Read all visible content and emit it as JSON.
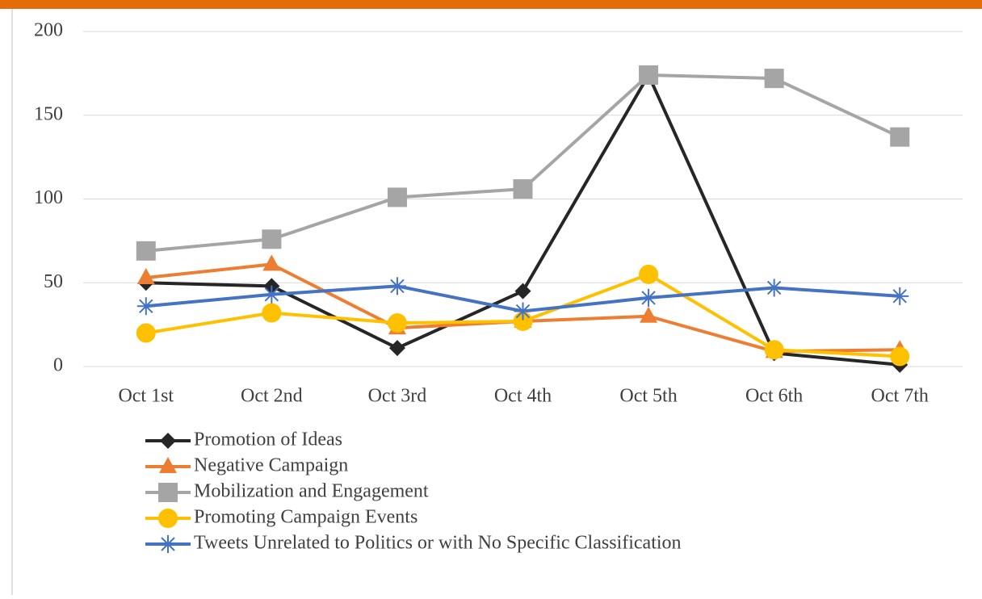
{
  "chart_data": {
    "type": "line",
    "categories": [
      "Oct 1st",
      "Oct 2nd",
      "Oct 3rd",
      "Oct 4th",
      "Oct 5th",
      "Oct 6th",
      "Oct 7th"
    ],
    "series": [
      {
        "name": "Promotion of Ideas",
        "color": "#262626",
        "marker": "diamond",
        "values": [
          50,
          48,
          11,
          45,
          174,
          8,
          1
        ]
      },
      {
        "name": "Negative Campaign",
        "color": "#ed7d31",
        "marker": "triangle",
        "values": [
          53,
          61,
          23,
          27,
          30,
          9,
          10
        ]
      },
      {
        "name": "Mobilization and Engagement",
        "color": "#a5a5a5",
        "marker": "square",
        "values": [
          69,
          76,
          101,
          106,
          174,
          172,
          137
        ]
      },
      {
        "name": "Promoting Campaign Events",
        "color": "#ffc000",
        "marker": "circle",
        "values": [
          20,
          32,
          26,
          27,
          55,
          10,
          6
        ]
      },
      {
        "name": "Tweets Unrelated to Politics or with No Specific Classification",
        "color": "#4472c4",
        "marker": "star",
        "values": [
          36,
          43,
          48,
          33,
          41,
          47,
          42
        ]
      }
    ],
    "ylim": [
      0,
      200
    ],
    "yticks": [
      0,
      50,
      100,
      150,
      200
    ],
    "grid": true,
    "legend": "bottom"
  }
}
